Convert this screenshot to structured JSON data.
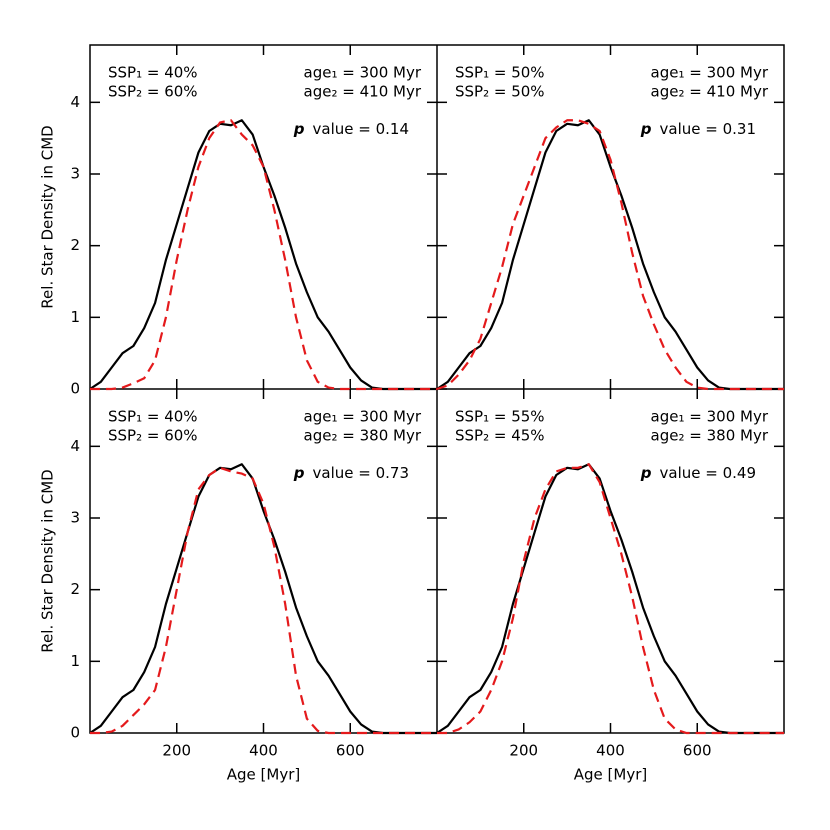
{
  "chart_data": [
    {
      "type": "line",
      "ylabel": "Rel. Star Density in CMD",
      "annotations": {
        "ssp1": "SSP₁ = 40%",
        "ssp2": "SSP₂ = 60%",
        "age1": "age₁ = 300 Myr",
        "age2": "age₂ = 410 Myr",
        "p_label": "p",
        "p_text": "value = 0.14"
      },
      "x": [
        0,
        25,
        50,
        75,
        100,
        125,
        150,
        175,
        200,
        225,
        250,
        275,
        300,
        325,
        350,
        375,
        400,
        425,
        450,
        475,
        500,
        525,
        550,
        575,
        600,
        625,
        650,
        675,
        700,
        725,
        750,
        775,
        800
      ],
      "series": [
        {
          "color": "#000000",
          "style": "solid",
          "values": [
            0,
            0.1,
            0.3,
            0.5,
            0.6,
            0.85,
            1.2,
            1.8,
            2.3,
            2.8,
            3.3,
            3.6,
            3.7,
            3.68,
            3.75,
            3.55,
            3.1,
            2.7,
            2.25,
            1.75,
            1.35,
            1.0,
            0.8,
            0.55,
            0.3,
            0.12,
            0.02,
            0,
            0,
            0,
            0,
            0,
            0
          ]
        },
        {
          "color": "#e41a1c",
          "style": "dashed",
          "values": [
            0,
            0,
            0,
            0.02,
            0.08,
            0.15,
            0.4,
            1.0,
            1.8,
            2.5,
            3.1,
            3.5,
            3.72,
            3.75,
            3.55,
            3.4,
            3.1,
            2.5,
            1.8,
            1.0,
            0.4,
            0.1,
            0.02,
            0,
            0,
            0,
            0,
            0,
            0,
            0,
            0,
            0,
            0
          ]
        }
      ],
      "xlim": [
        0,
        800
      ],
      "xticks": [
        200,
        400,
        600
      ],
      "ylim": [
        0,
        4.8
      ],
      "yticks": [
        0,
        1,
        2,
        3,
        4
      ]
    },
    {
      "type": "line",
      "annotations": {
        "ssp1": "SSP₁ = 50%",
        "ssp2": "SSP₂ = 50%",
        "age1": "age₁ = 300 Myr",
        "age2": "age₂ = 410 Myr",
        "p_label": "p",
        "p_text": "value = 0.31"
      },
      "x": [
        0,
        25,
        50,
        75,
        100,
        125,
        150,
        175,
        200,
        225,
        250,
        275,
        300,
        325,
        350,
        375,
        400,
        425,
        450,
        475,
        500,
        525,
        550,
        575,
        600,
        625,
        650,
        675,
        700,
        725,
        750,
        775,
        800
      ],
      "series": [
        {
          "color": "#000000",
          "style": "solid",
          "values": [
            0,
            0.1,
            0.3,
            0.5,
            0.6,
            0.85,
            1.2,
            1.8,
            2.3,
            2.8,
            3.3,
            3.6,
            3.7,
            3.68,
            3.75,
            3.55,
            3.1,
            2.7,
            2.25,
            1.75,
            1.35,
            1.0,
            0.8,
            0.55,
            0.3,
            0.12,
            0.02,
            0,
            0,
            0,
            0,
            0,
            0
          ]
        },
        {
          "color": "#e41a1c",
          "style": "dashed",
          "values": [
            0,
            0.05,
            0.2,
            0.4,
            0.7,
            1.2,
            1.7,
            2.3,
            2.7,
            3.1,
            3.5,
            3.65,
            3.75,
            3.75,
            3.7,
            3.6,
            3.2,
            2.6,
            1.9,
            1.3,
            0.9,
            0.55,
            0.3,
            0.1,
            0.02,
            0,
            0,
            0,
            0,
            0,
            0,
            0,
            0
          ]
        }
      ],
      "xlim": [
        0,
        800
      ],
      "xticks": [
        200,
        400,
        600
      ],
      "ylim": [
        0,
        4.8
      ],
      "yticks": [
        0,
        1,
        2,
        3,
        4
      ]
    },
    {
      "type": "line",
      "ylabel": "Rel. Star Density in CMD",
      "xlabel": "Age [Myr]",
      "annotations": {
        "ssp1": "SSP₁ = 40%",
        "ssp2": "SSP₂ = 60%",
        "age1": "age₁ = 300 Myr",
        "age2": "age₂ = 380 Myr",
        "p_label": "p",
        "p_text": "value = 0.73"
      },
      "x": [
        0,
        25,
        50,
        75,
        100,
        125,
        150,
        175,
        200,
        225,
        250,
        275,
        300,
        325,
        350,
        375,
        400,
        425,
        450,
        475,
        500,
        525,
        550,
        575,
        600,
        625,
        650,
        675,
        700,
        725,
        750,
        775,
        800
      ],
      "series": [
        {
          "color": "#000000",
          "style": "solid",
          "values": [
            0,
            0.1,
            0.3,
            0.5,
            0.6,
            0.85,
            1.2,
            1.8,
            2.3,
            2.8,
            3.3,
            3.6,
            3.7,
            3.68,
            3.75,
            3.55,
            3.1,
            2.7,
            2.25,
            1.75,
            1.35,
            1.0,
            0.8,
            0.55,
            0.3,
            0.12,
            0.02,
            0,
            0,
            0,
            0,
            0,
            0
          ]
        },
        {
          "color": "#e41a1c",
          "style": "dashed",
          "values": [
            0,
            0,
            0.02,
            0.1,
            0.25,
            0.4,
            0.6,
            1.2,
            2.0,
            2.8,
            3.4,
            3.6,
            3.7,
            3.65,
            3.62,
            3.55,
            3.2,
            2.6,
            1.8,
            0.8,
            0.2,
            0.03,
            0,
            0,
            0,
            0,
            0,
            0,
            0,
            0,
            0,
            0,
            0
          ]
        }
      ],
      "xlim": [
        0,
        800
      ],
      "xticks": [
        200,
        400,
        600
      ],
      "ylim": [
        0,
        4.8
      ],
      "yticks": [
        0,
        1,
        2,
        3,
        4
      ]
    },
    {
      "type": "line",
      "xlabel": "Age [Myr]",
      "annotations": {
        "ssp1": "SSP₁ = 55%",
        "ssp2": "SSP₂ = 45%",
        "age1": "age₁ = 300 Myr",
        "age2": "age₂ = 380 Myr",
        "p_label": "p",
        "p_text": "value = 0.49"
      },
      "x": [
        0,
        25,
        50,
        75,
        100,
        125,
        150,
        175,
        200,
        225,
        250,
        275,
        300,
        325,
        350,
        375,
        400,
        425,
        450,
        475,
        500,
        525,
        550,
        575,
        600,
        625,
        650,
        675,
        700,
        725,
        750,
        775,
        800
      ],
      "series": [
        {
          "color": "#000000",
          "style": "solid",
          "values": [
            0,
            0.1,
            0.3,
            0.5,
            0.6,
            0.85,
            1.2,
            1.8,
            2.3,
            2.8,
            3.3,
            3.6,
            3.7,
            3.68,
            3.75,
            3.55,
            3.1,
            2.7,
            2.25,
            1.75,
            1.35,
            1.0,
            0.8,
            0.55,
            0.3,
            0.12,
            0.02,
            0,
            0,
            0,
            0,
            0,
            0
          ]
        },
        {
          "color": "#e41a1c",
          "style": "dashed",
          "values": [
            0,
            0,
            0.05,
            0.15,
            0.3,
            0.6,
            1.0,
            1.6,
            2.4,
            3.0,
            3.4,
            3.65,
            3.7,
            3.7,
            3.75,
            3.5,
            3.0,
            2.5,
            1.9,
            1.2,
            0.6,
            0.2,
            0.05,
            0,
            0,
            0,
            0,
            0,
            0,
            0,
            0,
            0,
            0
          ]
        }
      ],
      "xlim": [
        0,
        800
      ],
      "xticks": [
        200,
        400,
        600
      ],
      "ylim": [
        0,
        4.8
      ],
      "yticks": [
        0,
        1,
        2,
        3,
        4
      ]
    }
  ]
}
